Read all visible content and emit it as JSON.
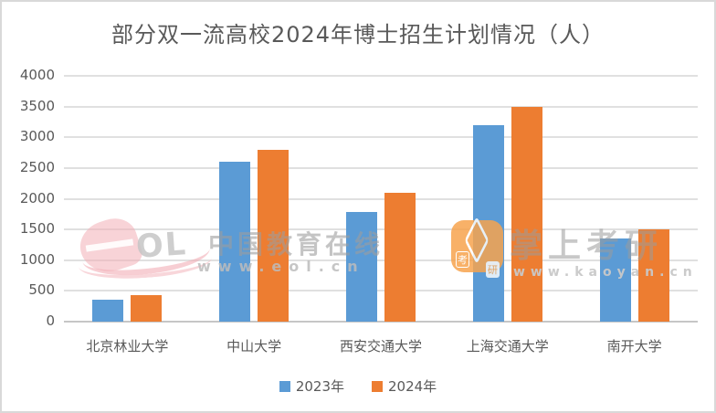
{
  "frame": {
    "background": "#ffffff",
    "border_color": "#d9d9d9"
  },
  "chart_data": {
    "type": "bar",
    "title": "部分双一流高校2024年博士招生计划情况（人）",
    "categories": [
      "北京林业大学",
      "中山大学",
      "西安交通大学",
      "上海交通大学",
      "南开大学"
    ],
    "series": [
      {
        "name": "2023年",
        "color": "#5B9BD5",
        "values": [
          360,
          2600,
          1780,
          3200,
          1350
        ]
      },
      {
        "name": "2024年",
        "color": "#ED7D31",
        "values": [
          430,
          2800,
          2100,
          3500,
          1500
        ]
      }
    ],
    "xlabel": "",
    "ylabel": "",
    "ylim": [
      0,
      4000
    ],
    "yticks": [
      0,
      500,
      1000,
      1500,
      2000,
      2500,
      3000,
      3500,
      4000
    ],
    "grid": true,
    "legend_position": "bottom"
  },
  "colors": {
    "grid": "#e0e0e0",
    "zero_axis": "#c6c6c6",
    "text": "#595959",
    "series_2023": "#5B9BD5",
    "series_2024": "#ED7D31"
  },
  "watermarks": {
    "eol": {
      "logo": "OL",
      "title": "中国教育在线",
      "url": "www.eol.cn"
    },
    "kaoyan": {
      "title": "掌上考研",
      "url": "www.kaoyan.cn",
      "icon_char_left": "考",
      "icon_char_right": "研"
    }
  }
}
